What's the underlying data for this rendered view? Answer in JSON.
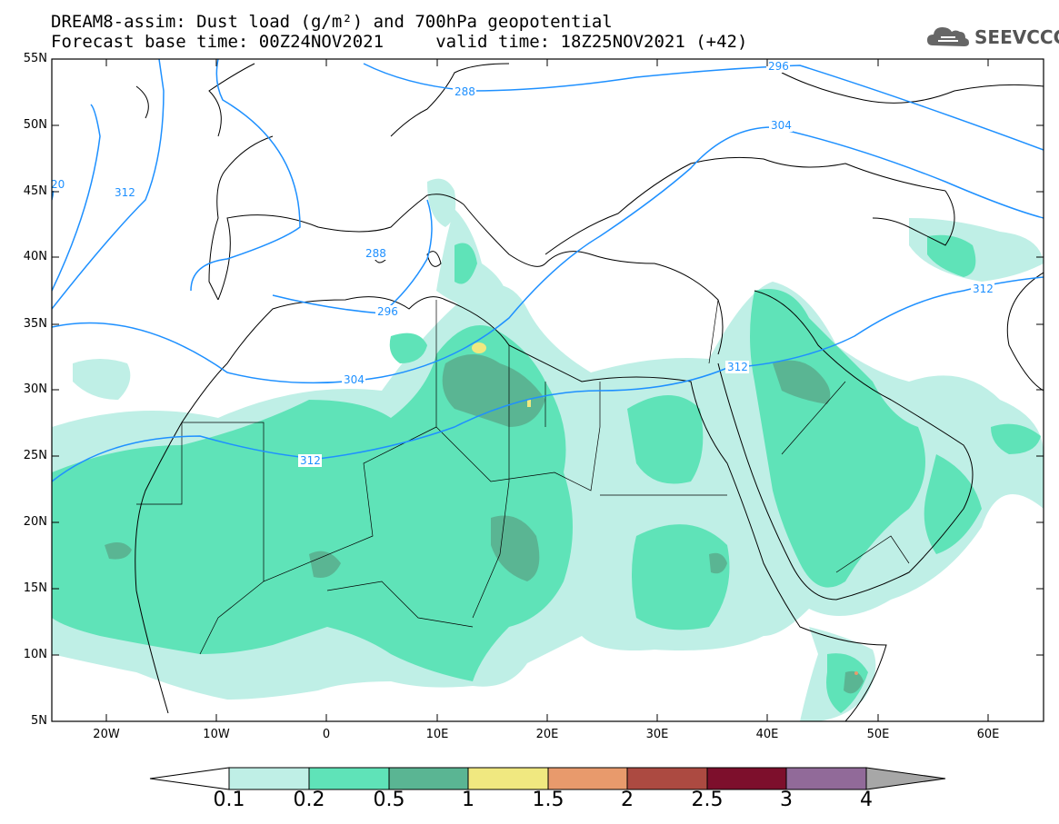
{
  "header": {
    "title_line1": "DREAM8-assim: Dust load (g/m²) and 700hPa geopotential",
    "title_line2": "Forecast base time: 00Z24NOV2021     valid time: 18Z25NOV2021 (+42)"
  },
  "logo": {
    "text": "SEEVCCC",
    "icon": "cloud-icon"
  },
  "map": {
    "projection": "lat-lon",
    "lon_range": [
      -25,
      65
    ],
    "lat_range": [
      5,
      55
    ],
    "lat_labels": [
      "55N",
      "50N",
      "45N",
      "40N",
      "35N",
      "30N",
      "25N",
      "20N",
      "15N",
      "10N",
      "5N"
    ],
    "lon_labels": [
      "20W",
      "10W",
      "0",
      "10E",
      "20E",
      "30E",
      "40E",
      "50E",
      "60E"
    ],
    "contour_labels": [
      "20",
      "312",
      "288",
      "296",
      "304",
      "312",
      "288",
      "296",
      "304",
      "312",
      "312"
    ],
    "field": "Dust load (g/m²)",
    "contours": "700hPa geopotential"
  },
  "colorbar": {
    "labels": [
      "0.1",
      "0.2",
      "0.5",
      "1",
      "1.5",
      "2",
      "2.5",
      "3",
      "4"
    ],
    "colors": [
      "#ffffff",
      "#bfefe6",
      "#5fe3b8",
      "#5ab593",
      "#f0e880",
      "#e89a6c",
      "#ac4a41",
      "#7d0f2c",
      "#916a99",
      "#a7a7a7"
    ]
  }
}
